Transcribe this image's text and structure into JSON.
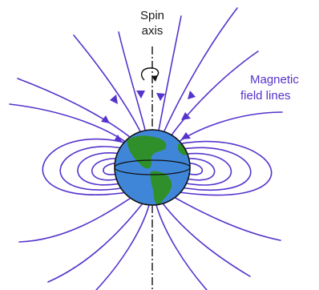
{
  "labels": {
    "spin_line1": "Spin",
    "spin_line2": "axis",
    "magnetic_line1": "Magnetic",
    "magnetic_line2": "field lines"
  },
  "colors": {
    "field_line": "#5533cc",
    "ocean": "#3f86d8",
    "land": "#2f8f2a",
    "outline": "#111111",
    "label_text": "#1a1a1a",
    "field_label": "#5533cc"
  },
  "icons": {
    "rotation": "rotation-arrow-icon"
  }
}
